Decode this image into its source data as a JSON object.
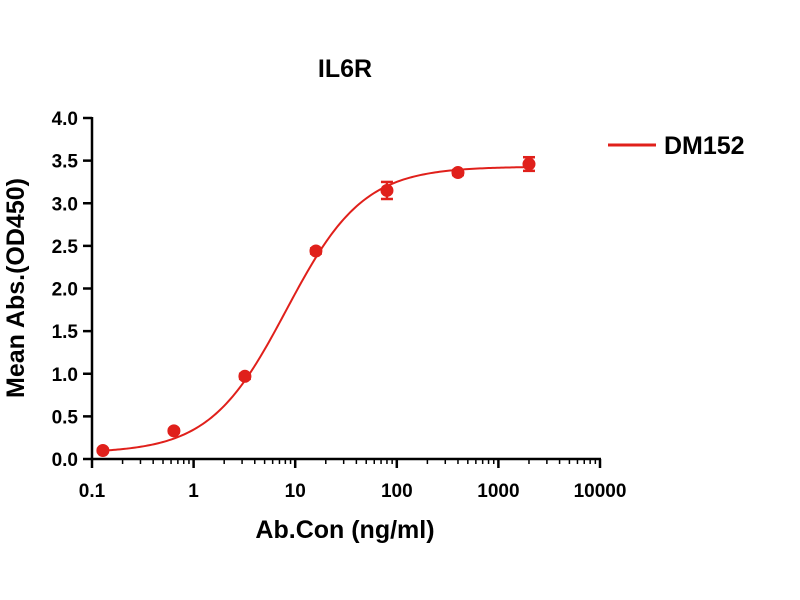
{
  "chart_data": {
    "type": "scatter",
    "title": "IL6R",
    "xlabel": "Ab.Con (ng/ml)",
    "ylabel": "Mean Abs.(OD450)",
    "xscale": "log",
    "xlim": [
      0.1,
      10000
    ],
    "ylim": [
      0,
      4.0
    ],
    "x_ticks": [
      0.1,
      1,
      10,
      100,
      1000,
      10000
    ],
    "x_tick_labels": [
      "0.1",
      "1",
      "10",
      "100",
      "1000",
      "10000"
    ],
    "y_ticks": [
      0.0,
      0.5,
      1.0,
      1.5,
      2.0,
      2.5,
      3.0,
      3.5,
      4.0
    ],
    "y_tick_labels": [
      "0.0",
      "0.5",
      "1.0",
      "1.5",
      "2.0",
      "2.5",
      "3.0",
      "3.5",
      "4.0"
    ],
    "grid": false,
    "legend_position": "top-right",
    "series": [
      {
        "name": "DM152",
        "color": "#e0201b",
        "x": [
          0.128,
          0.64,
          3.2,
          16,
          80,
          400,
          2000
        ],
        "y": [
          0.1,
          0.33,
          0.97,
          2.44,
          3.15,
          3.36,
          3.46
        ],
        "error": [
          0.02,
          0.02,
          0.03,
          0.03,
          0.1,
          0.03,
          0.08
        ],
        "fit": "4PL sigmoid"
      }
    ]
  }
}
